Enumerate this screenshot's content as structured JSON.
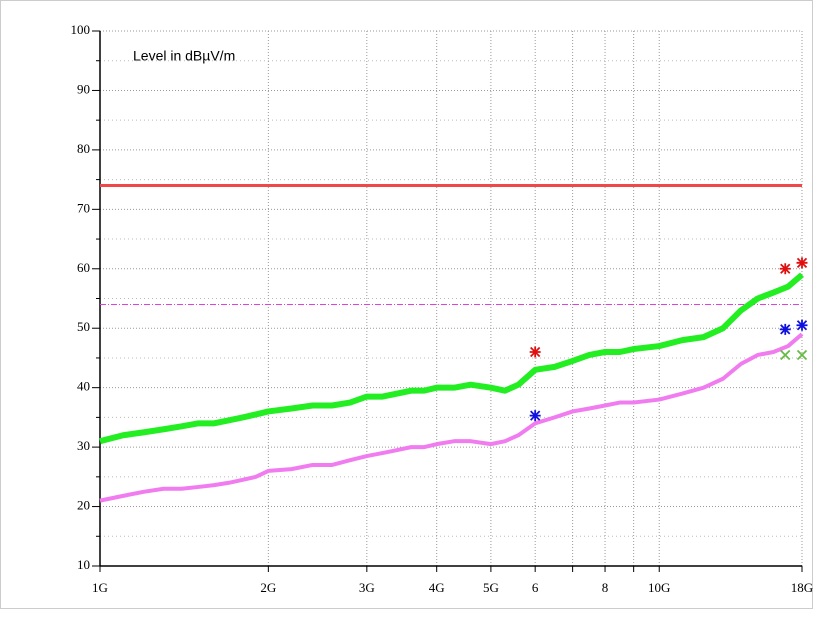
{
  "chart_data": {
    "type": "line",
    "title": "Level in dBµV/m",
    "xscale": "log",
    "xlim": [
      1,
      18
    ],
    "ylim": [
      10,
      100
    ],
    "xticks": [
      {
        "value": 1,
        "label": "1G"
      },
      {
        "value": 2,
        "label": "2G"
      },
      {
        "value": 3,
        "label": "3G"
      },
      {
        "value": 4,
        "label": "4G"
      },
      {
        "value": 5,
        "label": "5G"
      },
      6,
      8,
      {
        "value": 10,
        "label": "10G"
      },
      {
        "value": 18,
        "label": "18G"
      }
    ],
    "xminor": [
      7,
      9
    ],
    "yticks": [
      10,
      20,
      30,
      40,
      50,
      60,
      70,
      80,
      90,
      100
    ],
    "yminor": [
      15,
      25,
      35,
      45,
      55,
      65,
      75,
      85,
      95
    ],
    "grid": true,
    "x": [
      1,
      1.1,
      1.2,
      1.3,
      1.4,
      1.5,
      1.6,
      1.7,
      1.8,
      1.9,
      2,
      2.2,
      2.4,
      2.6,
      2.8,
      3,
      3.2,
      3.4,
      3.6,
      3.8,
      4,
      4.3,
      4.6,
      5,
      5.3,
      5.6,
      6,
      6.5,
      7,
      7.5,
      8,
      8.5,
      9,
      10,
      11,
      12,
      13,
      14,
      15,
      16,
      17,
      18
    ],
    "series": [
      {
        "color": "#22ee22",
        "values": [
          31,
          32,
          32.5,
          33,
          33.5,
          34,
          34,
          34.5,
          35,
          35.5,
          36,
          36.5,
          37,
          37,
          37.5,
          38.5,
          38.5,
          39,
          39.5,
          39.5,
          40,
          40,
          40.5,
          40,
          39.5,
          40.5,
          43,
          43.5,
          44.5,
          45.5,
          46,
          46,
          46.5,
          47,
          48,
          48.5,
          50,
          53,
          55,
          56,
          57,
          59
        ]
      },
      {
        "color": "#f07cf0",
        "values": [
          21,
          21.8,
          22.5,
          23,
          23,
          23.3,
          23.6,
          24,
          24.5,
          25,
          26,
          26.3,
          27,
          27,
          27.8,
          28.5,
          29,
          29.5,
          30,
          30,
          30.5,
          31,
          31,
          30.5,
          31,
          32,
          34,
          35,
          36,
          36.5,
          37,
          37.5,
          37.5,
          38,
          39,
          40,
          41.5,
          44,
          45.5,
          46,
          47,
          49
        ]
      }
    ],
    "limits": [
      {
        "value": 74,
        "color": "#f04848",
        "style": "solid"
      },
      {
        "value": 54,
        "color": "#e040e0",
        "style": "dashed"
      }
    ],
    "markers": [
      {
        "symbol": "asterisk",
        "color": "#e01010",
        "x": [
          6,
          16.8,
          18
        ],
        "values": [
          46,
          60,
          61
        ]
      },
      {
        "symbol": "asterisk",
        "color": "#1010e0",
        "x": [
          6,
          16.8,
          18
        ],
        "values": [
          35.3,
          49.8,
          50.5
        ]
      },
      {
        "symbol": "cross",
        "color": "#66bb44",
        "x": [
          16.8,
          18
        ],
        "values": [
          45.5,
          45.5
        ]
      }
    ]
  }
}
